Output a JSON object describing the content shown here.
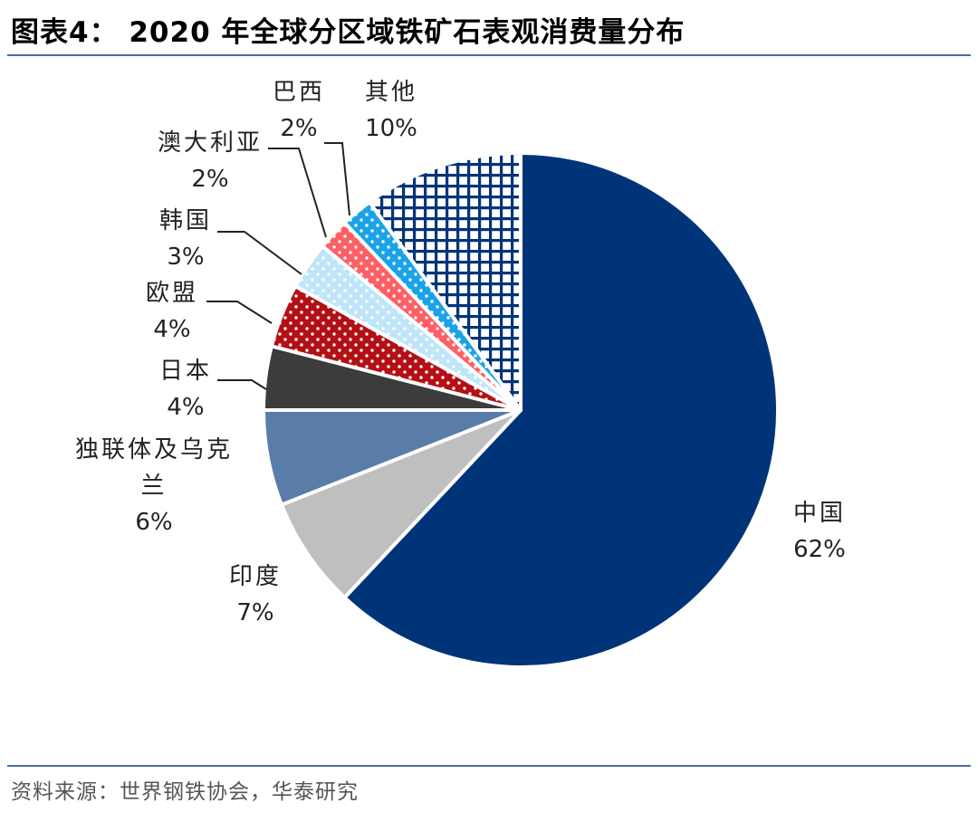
{
  "header": {
    "title": "图表4：  2020 年全球分区域铁矿石表观消费量分布"
  },
  "footer": {
    "source": "资料来源：世界钢铁协会，华泰研究"
  },
  "chart_data": {
    "type": "pie",
    "title": "2020 年全球分区域铁矿石表观消费量分布",
    "unit": "%",
    "start_angle_deg": 0,
    "direction": "clockwise",
    "slices": [
      {
        "key": "china",
        "label": "中国",
        "value": 62,
        "value_label": "62%",
        "color": "#003478",
        "pattern": "solid"
      },
      {
        "key": "india",
        "label": "印度",
        "value": 7,
        "value_label": "7%",
        "color": "#bfbfbf",
        "pattern": "solid"
      },
      {
        "key": "cis",
        "label": "独联体及乌克兰",
        "value": 6,
        "value_label": "6%",
        "color": "#5a7ca8",
        "pattern": "solid"
      },
      {
        "key": "japan",
        "label": "日本",
        "value": 4,
        "value_label": "4%",
        "color": "#3c3c3c",
        "pattern": "solid"
      },
      {
        "key": "eu",
        "label": "欧盟",
        "value": 4,
        "value_label": "4%",
        "color": "#b30f14",
        "pattern": "dots"
      },
      {
        "key": "korea",
        "label": "韩国",
        "value": 3,
        "value_label": "3%",
        "color": "#bfe6f8",
        "pattern": "dots"
      },
      {
        "key": "australia",
        "label": "澳大利亚",
        "value": 2,
        "value_label": "2%",
        "color": "#ff5e64",
        "pattern": "dots"
      },
      {
        "key": "brazil",
        "label": "巴西",
        "value": 2,
        "value_label": "2%",
        "color": "#1aa3e8",
        "pattern": "dots"
      },
      {
        "key": "other",
        "label": "其他",
        "value": 10,
        "value_label": "10%",
        "color": "#003478",
        "pattern": "grid"
      }
    ]
  }
}
